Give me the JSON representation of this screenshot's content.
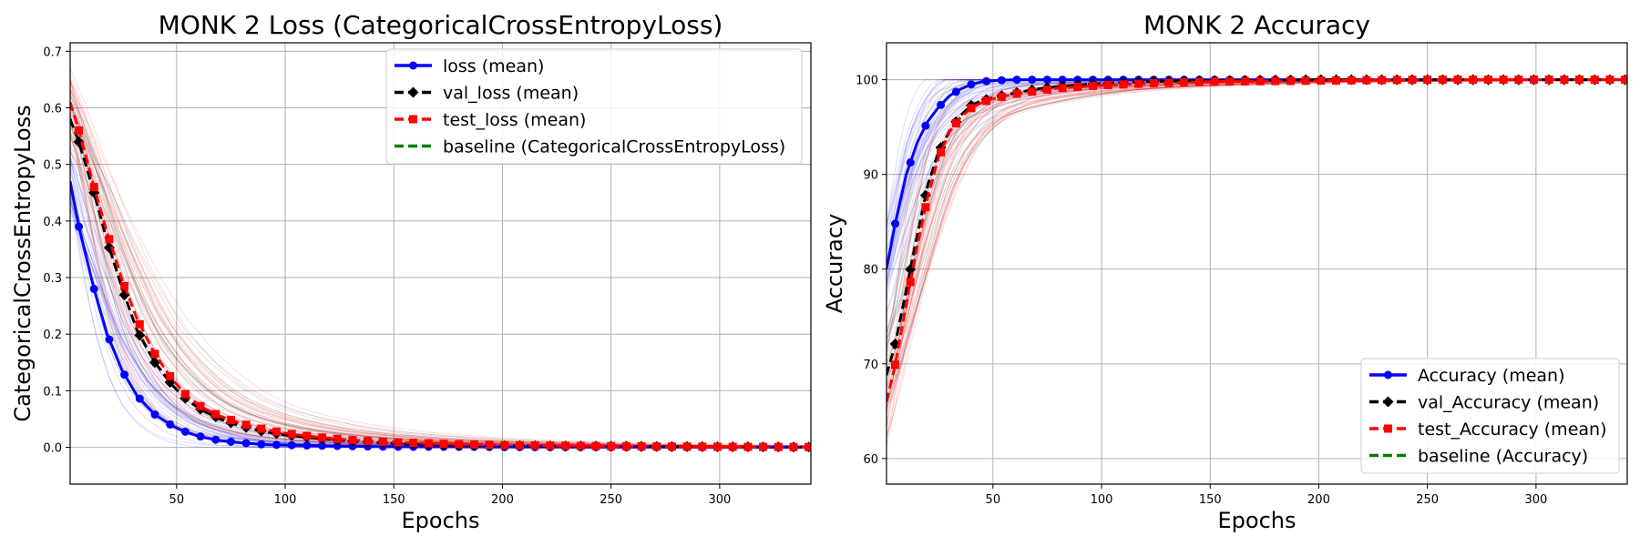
{
  "chart_data": [
    {
      "type": "line",
      "title": "MONK 2 Loss (CategoricalCrossEntropyLoss)",
      "xlabel": "Epochs",
      "ylabel": "CategoricalCrossEntropyLoss",
      "xlim": [
        1,
        342
      ],
      "ylim": [
        -0.065,
        0.715
      ],
      "xticks": [
        50,
        100,
        150,
        200,
        250,
        300
      ],
      "yticks": [
        0.0,
        0.1,
        0.2,
        0.3,
        0.4,
        0.5,
        0.6,
        0.7
      ],
      "grid": true,
      "legend_position": "top-right",
      "legend": [
        "loss (mean)",
        "val_loss (mean)",
        "test_loss (mean)",
        "baseline (CategoricalCrossEntropyLoss)"
      ],
      "series": [
        {
          "name": "loss (mean)",
          "color": "#0000ff",
          "linestyle": "solid",
          "marker": "circle",
          "x": [
            1,
            5,
            12,
            18,
            25,
            32,
            40,
            48,
            55,
            62,
            70,
            80,
            90,
            100,
            115,
            130,
            150,
            175,
            200,
            250,
            300,
            342
          ],
          "y": [
            0.47,
            0.39,
            0.28,
            0.2,
            0.135,
            0.09,
            0.058,
            0.038,
            0.026,
            0.018,
            0.012,
            0.008,
            0.005,
            0.004,
            0.003,
            0.002,
            0.001,
            0.001,
            0.0005,
            0.0003,
            0.0002,
            0.0001
          ]
        },
        {
          "name": "val_loss (mean)",
          "color": "#000000",
          "linestyle": "dashed",
          "marker": "diamond",
          "x": [
            1,
            5,
            12,
            18,
            25,
            32,
            40,
            48,
            55,
            62,
            70,
            80,
            90,
            100,
            115,
            130,
            150,
            175,
            200,
            250,
            300,
            342
          ],
          "y": [
            0.58,
            0.54,
            0.45,
            0.365,
            0.28,
            0.205,
            0.15,
            0.11,
            0.083,
            0.065,
            0.05,
            0.037,
            0.028,
            0.022,
            0.016,
            0.011,
            0.007,
            0.004,
            0.003,
            0.002,
            0.001,
            0.0005
          ]
        },
        {
          "name": "test_loss (mean)",
          "color": "#ff0000",
          "linestyle": "dashed",
          "marker": "square",
          "x": [
            1,
            5,
            12,
            18,
            25,
            32,
            40,
            48,
            55,
            62,
            70,
            80,
            90,
            100,
            115,
            130,
            150,
            175,
            200,
            250,
            300,
            342
          ],
          "y": [
            0.61,
            0.56,
            0.46,
            0.38,
            0.295,
            0.225,
            0.165,
            0.12,
            0.09,
            0.07,
            0.055,
            0.042,
            0.032,
            0.025,
            0.018,
            0.013,
            0.009,
            0.006,
            0.004,
            0.002,
            0.001,
            0.0005
          ]
        },
        {
          "name": "baseline (CategoricalCrossEntropyLoss)",
          "color": "#008000",
          "linestyle": "dashed",
          "marker": "none",
          "x": [],
          "y": []
        }
      ]
    },
    {
      "type": "line",
      "title": "MONK 2 Accuracy",
      "xlabel": "Epochs",
      "ylabel": "Accuracy",
      "xlim": [
        1,
        342
      ],
      "ylim": [
        57.3,
        103.9
      ],
      "xticks": [
        50,
        100,
        150,
        200,
        250,
        300
      ],
      "yticks": [
        60,
        70,
        80,
        90,
        100
      ],
      "grid": true,
      "legend_position": "lower-right",
      "legend": [
        "Accuracy (mean)",
        "val_Accuracy (mean)",
        "test_Accuracy (mean)",
        "baseline (Accuracy)"
      ],
      "series": [
        {
          "name": "Accuracy (mean)",
          "color": "#0000ff",
          "linestyle": "solid",
          "marker": "circle",
          "x": [
            1,
            5,
            10,
            15,
            20,
            25,
            30,
            35,
            40,
            45,
            50,
            60,
            70,
            80,
            100,
            150,
            200,
            250,
            300,
            342
          ],
          "y": [
            80.0,
            84.8,
            89.9,
            93.3,
            95.6,
            97.1,
            98.3,
            99.0,
            99.5,
            99.8,
            99.9,
            100,
            100,
            100,
            100,
            100,
            100,
            100,
            100,
            100
          ]
        },
        {
          "name": "val_Accuracy (mean)",
          "color": "#000000",
          "linestyle": "dashed",
          "marker": "diamond",
          "x": [
            1,
            5,
            10,
            15,
            20,
            25,
            30,
            35,
            40,
            45,
            50,
            60,
            70,
            80,
            100,
            120,
            150,
            200,
            250,
            300,
            342
          ],
          "y": [
            68.8,
            72.1,
            77.7,
            83.4,
            88.9,
            92.4,
            94.6,
            96.2,
            97.3,
            97.8,
            98.1,
            98.6,
            99.0,
            99.3,
            99.6,
            99.8,
            99.9,
            100,
            100,
            100,
            100
          ]
        },
        {
          "name": "test_Accuracy (mean)",
          "color": "#ff0000",
          "linestyle": "dashed",
          "marker": "square",
          "x": [
            1,
            5,
            10,
            15,
            20,
            25,
            30,
            35,
            40,
            45,
            50,
            60,
            70,
            80,
            100,
            120,
            150,
            200,
            250,
            300,
            342
          ],
          "y": [
            66.0,
            69.9,
            76.2,
            82.3,
            87.6,
            91.8,
            94.5,
            96.0,
            97.0,
            97.6,
            98.0,
            98.5,
            98.8,
            99.1,
            99.4,
            99.6,
            99.8,
            99.9,
            100,
            100,
            100
          ]
        },
        {
          "name": "baseline (Accuracy)",
          "color": "#008000",
          "linestyle": "dashed",
          "marker": "none",
          "x": [],
          "y": []
        }
      ]
    }
  ]
}
